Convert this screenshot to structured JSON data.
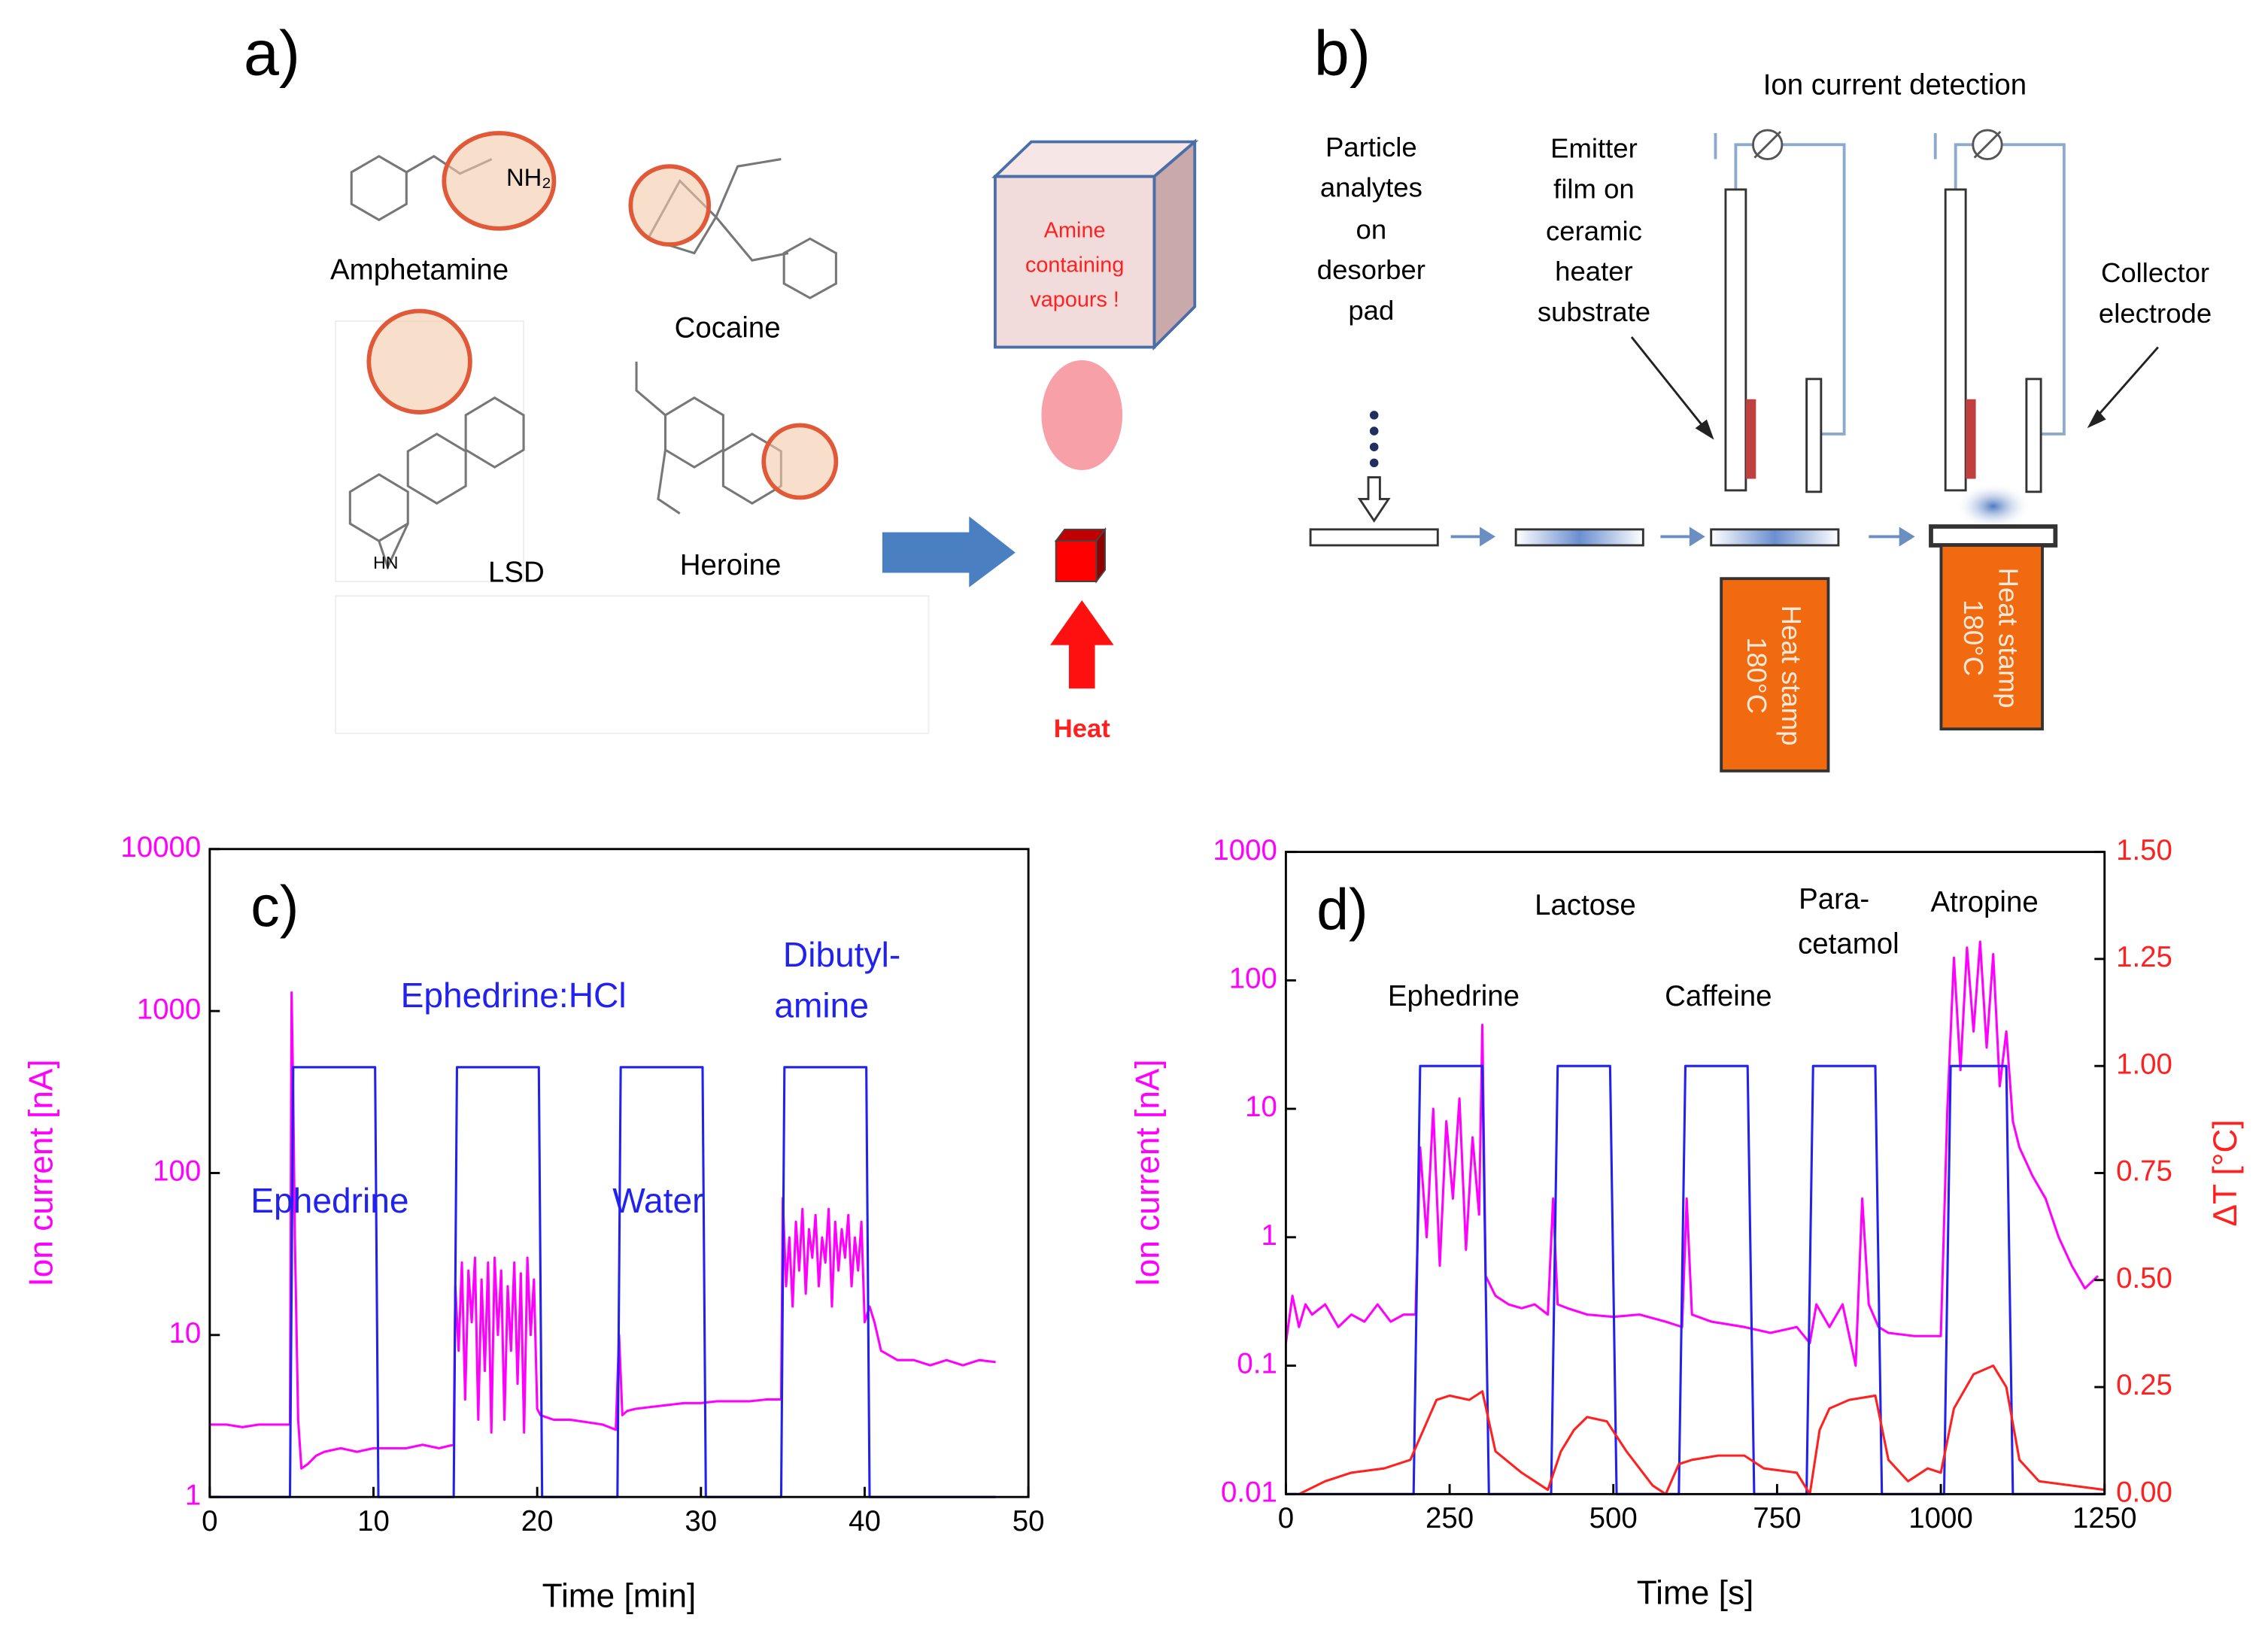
{
  "panel_a": {
    "label": "a)",
    "molecules": [
      "Amphetamine",
      "Cocaine",
      "LSD",
      "Heroine"
    ],
    "groups": [
      "NH₂",
      "HN"
    ],
    "box_text": [
      "Amine",
      "containing",
      "vapours !"
    ],
    "heat": "Heat"
  },
  "panel_b": {
    "label": "b)",
    "title": "Ion current detection",
    "particle_text": [
      "Particle",
      "analytes",
      "on",
      "desorber",
      "pad"
    ],
    "emitter_text": [
      "Emitter",
      "film on",
      "ceramic",
      "heater",
      "substrate"
    ],
    "collector_text": [
      "Collector",
      "electrode"
    ],
    "stamps": [
      {
        "line1": "Heat stamp",
        "line2": "180°C"
      },
      {
        "line1": "Heat stamp",
        "line2": "180°C"
      }
    ]
  },
  "chart_data": [
    {
      "type": "line",
      "panel_label": "c)",
      "xlabel": "Time [min]",
      "ylabel": "Ion current [nA]",
      "log_y": true,
      "xlim": [
        0,
        50
      ],
      "xticks": [
        0,
        10,
        20,
        30,
        40,
        50
      ],
      "ylim": [
        1,
        10000
      ],
      "yticks": [
        1,
        10,
        100,
        1000,
        10000
      ],
      "annotations": [
        "Ephedrine:HCl",
        "Ephedrine",
        "Water",
        "Dibutyl-",
        "amine"
      ],
      "series": [
        {
          "color": "#ff00ff",
          "x": [
            0,
            1,
            2,
            3,
            4,
            4.9,
            5.0,
            5.1,
            5.2,
            5.4,
            5.6,
            6,
            6.5,
            7,
            8,
            9,
            10,
            11,
            12,
            13,
            14,
            14.9,
            15.0,
            15.2,
            15.4,
            15.6,
            15.8,
            16,
            16.2,
            16.4,
            16.6,
            16.8,
            17,
            17.2,
            17.4,
            17.6,
            17.8,
            18,
            18.2,
            18.4,
            18.6,
            18.8,
            19,
            19.2,
            19.4,
            19.6,
            19.8,
            20,
            20.2,
            21,
            22,
            23,
            24,
            24.8,
            25.0,
            25.2,
            25.5,
            26,
            27,
            28,
            29,
            30,
            31,
            32,
            33,
            34,
            34.9,
            35.0,
            35.2,
            35.4,
            35.6,
            35.8,
            36,
            36.2,
            36.4,
            36.6,
            36.8,
            37,
            37.2,
            37.4,
            37.6,
            37.8,
            38,
            38.2,
            38.4,
            38.6,
            38.8,
            39,
            39.2,
            39.4,
            39.6,
            39.8,
            40,
            40.3,
            40.6,
            41,
            42,
            43,
            44,
            45,
            46,
            47,
            48
          ],
          "values": [
            2.8,
            2.8,
            2.7,
            2.8,
            2.8,
            2.8,
            1300,
            300,
            40,
            3,
            1.5,
            1.6,
            1.8,
            1.9,
            2.0,
            1.9,
            2.0,
            2.0,
            2.0,
            2.1,
            2.0,
            2.1,
            20,
            8,
            28,
            4,
            25,
            12,
            30,
            3,
            22,
            6,
            28,
            2.5,
            30,
            10,
            25,
            3,
            20,
            8,
            28,
            5,
            24,
            2.5,
            30,
            10,
            22,
            3.5,
            3.2,
            3.0,
            3.0,
            2.9,
            2.8,
            2.6,
            10,
            3.2,
            3.4,
            3.5,
            3.6,
            3.7,
            3.8,
            3.8,
            3.9,
            3.9,
            3.9,
            4.0,
            4.0,
            70,
            20,
            40,
            15,
            50,
            25,
            60,
            18,
            45,
            30,
            55,
            20,
            40,
            28,
            60,
            15,
            50,
            25,
            45,
            30,
            55,
            20,
            40,
            25,
            50,
            12,
            15,
            12,
            8,
            7,
            7,
            6.5,
            7,
            6.5,
            7,
            6.8
          ]
        },
        {
          "color": "#2222ee",
          "x": [
            0,
            4.9,
            5.1,
            10.1,
            10.3,
            14.9,
            15.1,
            20.1,
            20.3,
            24.9,
            25.1,
            30.1,
            30.3,
            34.9,
            35.1,
            40.1,
            40.3,
            48
          ],
          "values": [
            1,
            1,
            450,
            450,
            1,
            1,
            450,
            450,
            1,
            1,
            450,
            450,
            1,
            1,
            450,
            450,
            1,
            1
          ]
        }
      ]
    },
    {
      "type": "line",
      "panel_label": "d)",
      "xlabel": "Time [s]",
      "ylabel": "Ion current [nA]",
      "y2label": "ΔT [°C]",
      "log_y": true,
      "xlim": [
        0,
        1250
      ],
      "xticks": [
        0,
        250,
        500,
        750,
        1000,
        1250
      ],
      "ylim": [
        0.01,
        1000
      ],
      "yticks": [
        0.01,
        0.1,
        1,
        10,
        100,
        1000
      ],
      "y2lim": [
        0,
        1.5
      ],
      "y2ticks": [
        {
          "value": 0,
          "label": "0.00"
        },
        0.25,
        {
          "value": 0.5,
          "label": "0.50"
        },
        0.75,
        {
          "value": 1,
          "label": "1.00"
        },
        1.25,
        {
          "value": 1.5,
          "label": "1.50"
        }
      ],
      "annotations": [
        "Ephedrine",
        "Lactose",
        "Caffeine",
        "Para-",
        "cetamol",
        "Atropine"
      ],
      "series": [
        {
          "color": "#ff00ff",
          "x": [
            0,
            10,
            20,
            30,
            40,
            60,
            80,
            100,
            120,
            140,
            160,
            180,
            198,
            205,
            215,
            225,
            235,
            245,
            255,
            265,
            275,
            285,
            295,
            300,
            305,
            320,
            340,
            360,
            380,
            400,
            408,
            415,
            430,
            460,
            500,
            540,
            580,
            605,
            612,
            620,
            650,
            700,
            740,
            780,
            800,
            810,
            830,
            850,
            870,
            880,
            890,
            905,
            920,
            960,
            1000,
            1010,
            1020,
            1030,
            1040,
            1050,
            1060,
            1070,
            1080,
            1090,
            1100,
            1110,
            1120,
            1140,
            1160,
            1180,
            1200,
            1220,
            1240
          ],
          "values": [
            0.15,
            0.35,
            0.2,
            0.3,
            0.25,
            0.3,
            0.2,
            0.25,
            0.22,
            0.3,
            0.22,
            0.25,
            0.25,
            5,
            1,
            10,
            0.6,
            8,
            2,
            12,
            0.8,
            6,
            1.5,
            45,
            0.5,
            0.35,
            0.3,
            0.28,
            0.3,
            0.25,
            2,
            0.3,
            0.28,
            0.25,
            0.24,
            0.25,
            0.22,
            0.2,
            2,
            0.25,
            0.22,
            0.2,
            0.18,
            0.2,
            0.15,
            0.3,
            0.2,
            0.3,
            0.1,
            2,
            0.3,
            0.2,
            0.18,
            0.17,
            0.17,
            10,
            150,
            20,
            180,
            40,
            200,
            30,
            160,
            15,
            40,
            8,
            5,
            3,
            2,
            1,
            0.6,
            0.4,
            0.5
          ]
        },
        {
          "color": "#2222ee",
          "axis": "y2",
          "x": [
            0,
            195,
            205,
            300,
            310,
            405,
            415,
            495,
            505,
            600,
            610,
            705,
            715,
            795,
            805,
            900,
            910,
            1005,
            1015,
            1100,
            1110,
            1250
          ],
          "values": [
            0,
            0,
            1,
            1,
            0,
            0,
            1,
            1,
            0,
            0,
            1,
            1,
            0,
            0,
            1,
            1,
            0,
            0,
            1,
            1,
            0,
            0
          ]
        },
        {
          "color": "#ff2020",
          "axis": "y2",
          "x": [
            20,
            60,
            100,
            150,
            190,
            210,
            230,
            250,
            280,
            300,
            320,
            360,
            400,
            420,
            440,
            460,
            490,
            520,
            560,
            580,
            600,
            620,
            660,
            700,
            730,
            780,
            800,
            815,
            830,
            860,
            900,
            920,
            950,
            980,
            1000,
            1020,
            1050,
            1080,
            1100,
            1120,
            1150,
            1200,
            1250
          ],
          "values": [
            0,
            0.03,
            0.05,
            0.06,
            0.08,
            0.15,
            0.22,
            0.23,
            0.22,
            0.24,
            0.1,
            0.05,
            0.01,
            0.1,
            0.15,
            0.18,
            0.17,
            0.1,
            0.02,
            0,
            0.07,
            0.08,
            0.09,
            0.09,
            0.06,
            0.05,
            0,
            0.15,
            0.2,
            0.22,
            0.23,
            0.08,
            0.03,
            0.06,
            0.05,
            0.2,
            0.28,
            0.3,
            0.25,
            0.08,
            0.03,
            0.02,
            0.01
          ]
        }
      ]
    }
  ]
}
